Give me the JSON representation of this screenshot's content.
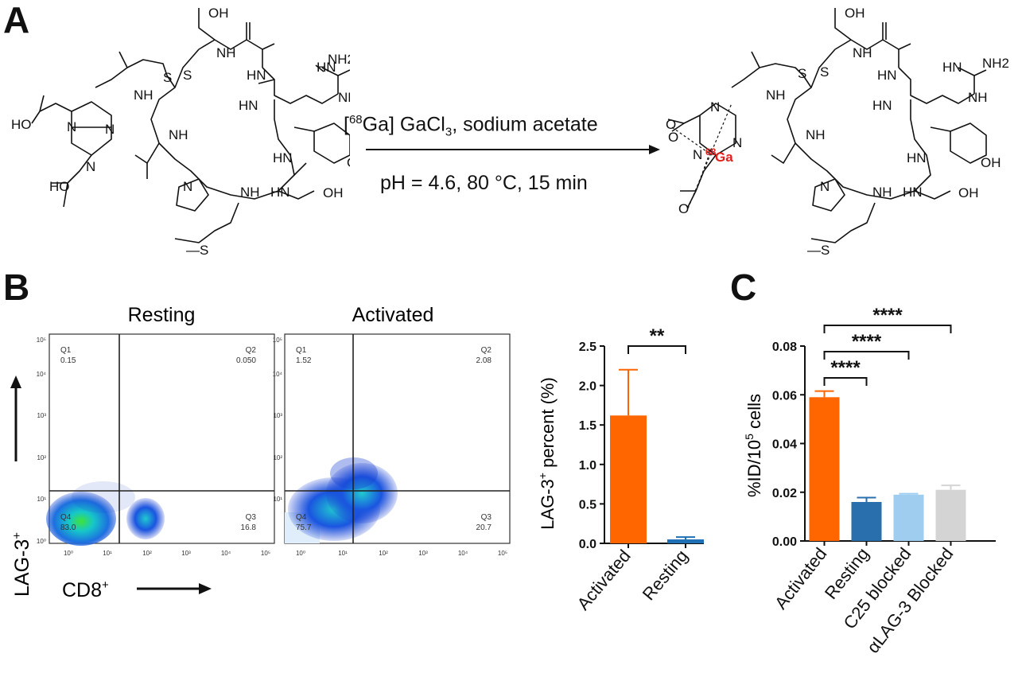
{
  "panels": {
    "a": "A",
    "b": "B",
    "c": "C"
  },
  "reaction": {
    "reagent_pre": "[",
    "reagent_iso": "68",
    "reagent_post": "Ga] GaCl",
    "reagent_sub": "3",
    "reagent_tail": ", sodium acetate",
    "conditions": "pH = 4.6, 80 °C, 15 min"
  },
  "molecule": {
    "cooh": "OH",
    "nh2": "NH2",
    "hn_eq": "HN",
    "nh": "NH",
    "hn": "HN",
    "n": "N",
    "s": "S",
    "oh": "OH",
    "ho": "HO",
    "o": "O",
    "me_s": "—S",
    "ga_iso": "68",
    "ga": "Ga"
  },
  "flow": {
    "titles": [
      "Resting",
      "Activated"
    ],
    "ylabel": "LAG-3",
    "ylabel_sup": "+",
    "xlabel": "CD8",
    "xlabel_sup": "+",
    "ticks": [
      "10⁰",
      "10¹",
      "10²",
      "10³",
      "10⁴",
      "10⁵"
    ],
    "plots": [
      {
        "q1": "Q1",
        "q1v": "0.15",
        "q2": "Q2",
        "q2v": "0.050",
        "q3": "Q3",
        "q3v": "16.8",
        "q4": "Q4",
        "q4v": "83.0"
      },
      {
        "q1": "Q1",
        "q1v": "1.52",
        "q2": "Q2",
        "q2v": "2.08",
        "q3": "Q3",
        "q3v": "20.7",
        "q4": "Q4",
        "q4v": "75.7"
      }
    ]
  },
  "chart_data": [
    {
      "type": "bar",
      "panel": "B",
      "categories": [
        "Activated",
        "Resting"
      ],
      "values": [
        1.62,
        0.05
      ],
      "errors": [
        0.58,
        0.03
      ],
      "colors": [
        "#ff6600",
        "#1f6fb5"
      ],
      "ylabel": "LAG-3",
      "ylabel_sup": "+",
      "ylabel_post": " percent (%)",
      "ylim": [
        0,
        2.5
      ],
      "yticks": [
        "0.0",
        "0.5",
        "1.0",
        "1.5",
        "2.0",
        "2.5"
      ],
      "annotations": [
        {
          "from": 0,
          "to": 1,
          "text": "**"
        }
      ]
    },
    {
      "type": "bar",
      "panel": "C",
      "categories": [
        "Activated",
        "Resting",
        "C25 blocked",
        "αLAG-3 Blocked"
      ],
      "values": [
        0.059,
        0.016,
        0.019,
        0.021
      ],
      "errors": [
        0.0025,
        0.0018,
        0.0004,
        0.0018
      ],
      "colors": [
        "#ff6600",
        "#2a6fad",
        "#9ecdf0",
        "#d4d4d4"
      ],
      "ylabel": "%ID/10",
      "ylabel_sup": "5",
      "ylabel_post": " cells",
      "ylim": [
        0,
        0.08
      ],
      "yticks": [
        "0.00",
        "0.02",
        "0.04",
        "0.06",
        "0.08"
      ],
      "annotations": [
        {
          "from": 0,
          "to": 1,
          "text": "****"
        },
        {
          "from": 0,
          "to": 2,
          "text": "****"
        },
        {
          "from": 0,
          "to": 3,
          "text": "****"
        }
      ]
    }
  ]
}
